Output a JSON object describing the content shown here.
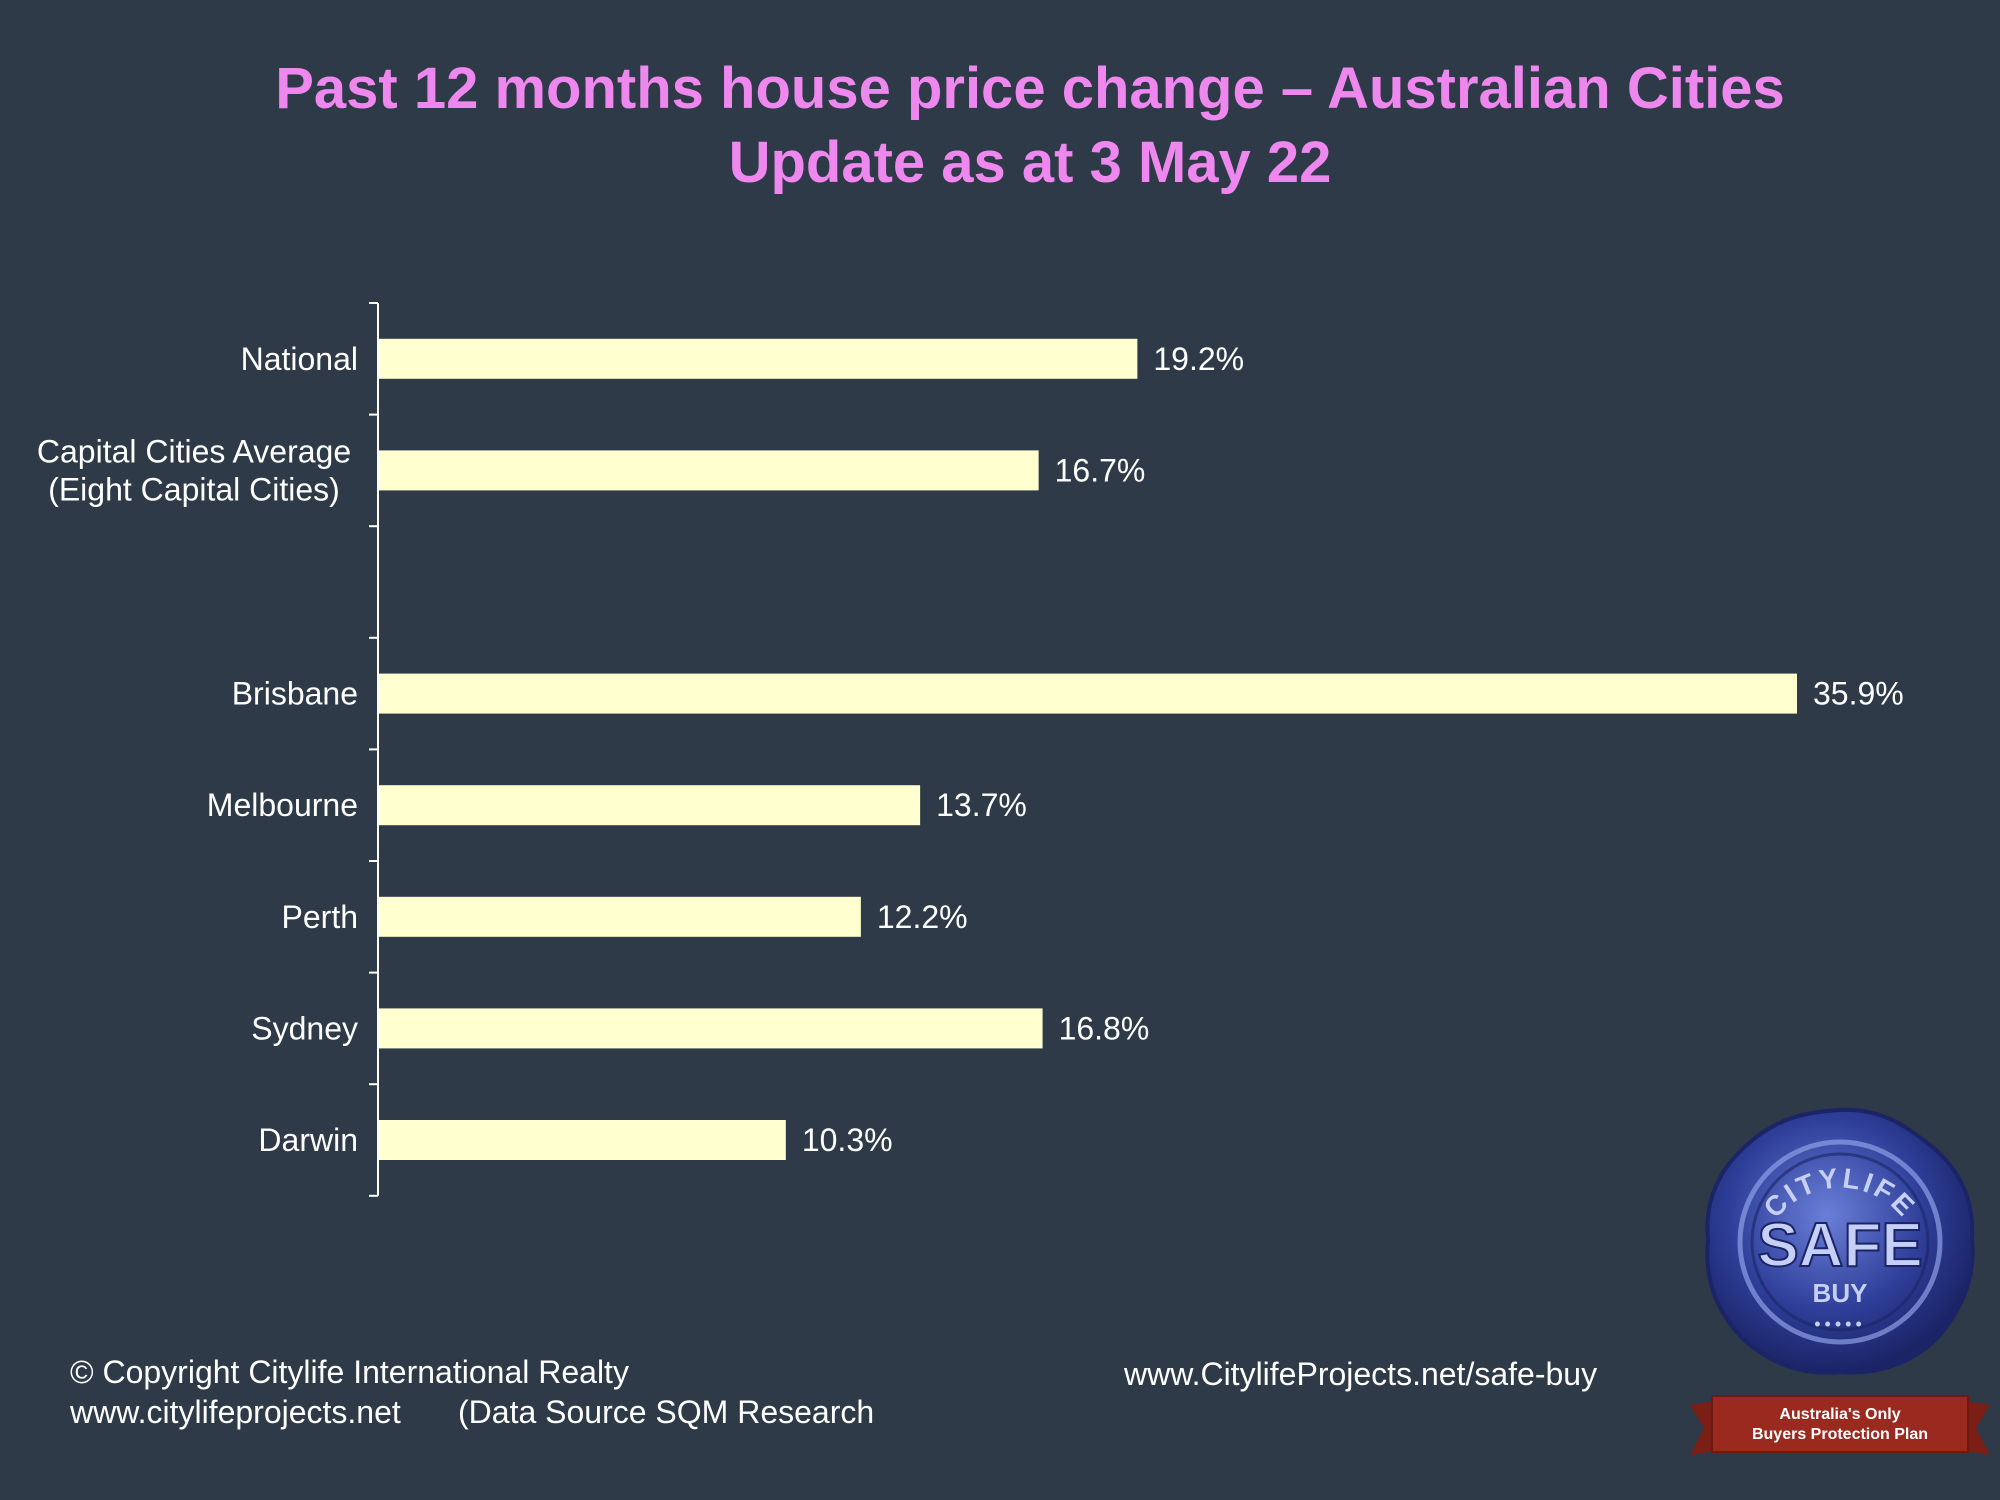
{
  "title": {
    "line1": "Past 12 months house price change – Australian  Cities",
    "line2": "Update as at 3 May 22"
  },
  "chart_data": {
    "type": "bar",
    "orientation": "horizontal",
    "categories": [
      [
        "National"
      ],
      [
        "Capital Cities Average",
        "(Eight Capital Cities)"
      ],
      [],
      [
        "Brisbane"
      ],
      [
        "Melbourne"
      ],
      [
        "Perth"
      ],
      [
        "Sydney"
      ],
      [
        "Darwin"
      ]
    ],
    "values": [
      19.2,
      16.7,
      null,
      35.9,
      13.7,
      12.2,
      16.8,
      10.3
    ],
    "value_labels": [
      "19.2%",
      "16.7%",
      "",
      "35.9%",
      "13.7%",
      "12.2%",
      "16.8%",
      "10.3%"
    ],
    "bar_color": "#ffffd0",
    "axis_color": "#ffffff",
    "xlim": [
      0,
      35.9
    ],
    "grid": false,
    "legend": "none"
  },
  "footer": {
    "copyright": "© Copyright  Citylife International  Realty",
    "website": "www.citylifeprojects.net",
    "source": "(Data Source SQM Research",
    "safe_buy_url": "www.CitylifeProjects.net/safe-buy"
  },
  "seal": {
    "arc_text": "CITYLIFE",
    "main_text": "SAFE",
    "sub_text": "BUY",
    "dots": "•••••",
    "banner_line1": "Australia's Only",
    "banner_line2": "Buyers Protection Plan",
    "seal_color": "#2f3f9a",
    "banner_color": "#9a2a20"
  }
}
